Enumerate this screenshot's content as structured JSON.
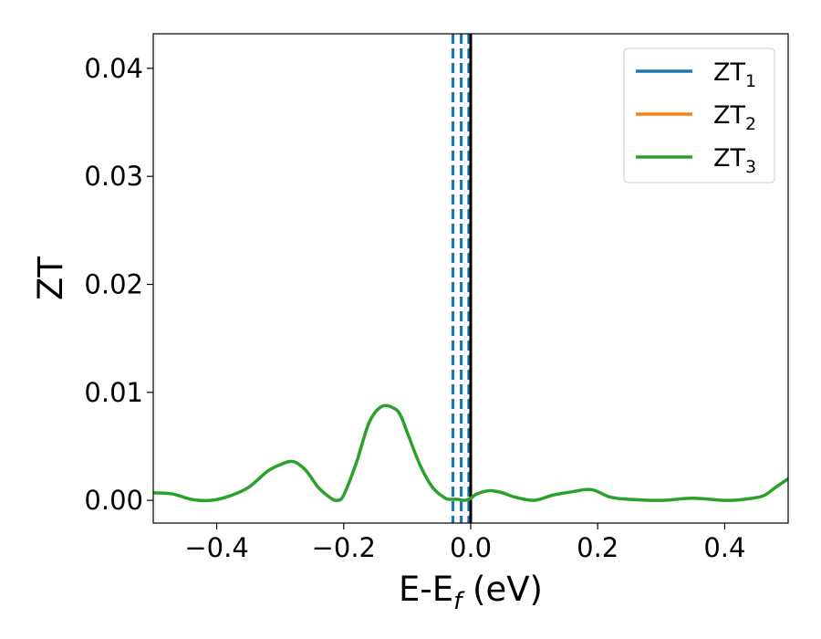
{
  "chart_data": {
    "type": "line",
    "xlabel": "E-E",
    "xlabel_sub": "f",
    "xlabel_unit": " (eV)",
    "ylabel": "ZT",
    "xlim": [
      -0.5,
      0.5
    ],
    "ylim": [
      -0.0021,
      0.0432
    ],
    "xticks": [
      -0.4,
      -0.2,
      0.0,
      0.2,
      0.4
    ],
    "xtick_labels": [
      "−0.4",
      "−0.2",
      "0.0",
      "0.2",
      "0.4"
    ],
    "yticks": [
      0.0,
      0.01,
      0.02,
      0.03,
      0.04
    ],
    "ytick_labels": [
      "0.00",
      "0.01",
      "0.02",
      "0.03",
      "0.04"
    ],
    "grid": false,
    "legend": "top-right",
    "series": [
      {
        "name": "ZT",
        "sub": "1",
        "color": "#1f77b4",
        "visible": false
      },
      {
        "name": "ZT",
        "sub": "2",
        "color": "#ff7f0e",
        "visible": false
      },
      {
        "name": "ZT",
        "sub": "3",
        "color": "#2ca02c",
        "visible": true,
        "x": [
          -0.5,
          -0.47,
          -0.44,
          -0.41,
          -0.38,
          -0.35,
          -0.32,
          -0.3,
          -0.28,
          -0.26,
          -0.24,
          -0.22,
          -0.21,
          -0.2,
          -0.18,
          -0.16,
          -0.14,
          -0.12,
          -0.11,
          -0.1,
          -0.08,
          -0.06,
          -0.04,
          -0.03,
          -0.02,
          -0.01,
          0.0,
          0.01,
          0.03,
          0.05,
          0.07,
          0.1,
          0.13,
          0.16,
          0.19,
          0.22,
          0.25,
          0.3,
          0.35,
          0.4,
          0.43,
          0.46,
          0.48,
          0.5
        ],
        "y": [
          0.0007,
          0.0006,
          0.0001,
          0.0,
          0.0004,
          0.0012,
          0.0027,
          0.0033,
          0.0036,
          0.0028,
          0.0012,
          0.0002,
          0.0,
          0.0005,
          0.0035,
          0.0072,
          0.0087,
          0.0085,
          0.0078,
          0.0063,
          0.0033,
          0.0012,
          0.0002,
          0.0001,
          0.0001,
          0.0,
          0.0002,
          0.0006,
          0.0009,
          0.0007,
          0.0003,
          0.0,
          0.0005,
          0.0008,
          0.001,
          0.0003,
          0.0001,
          0.0,
          0.0002,
          0.0,
          0.0001,
          0.0004,
          0.0012,
          0.002
        ]
      }
    ],
    "vlines": [
      {
        "x": -0.028,
        "color": "#1f77b4",
        "style": "dashed"
      },
      {
        "x": -0.015,
        "color": "#1f77b4",
        "style": "dashed"
      },
      {
        "x": -0.003,
        "color": "#1f77b4",
        "style": "dashed"
      },
      {
        "x": 0.0,
        "color": "#000000",
        "style": "solid"
      }
    ]
  }
}
